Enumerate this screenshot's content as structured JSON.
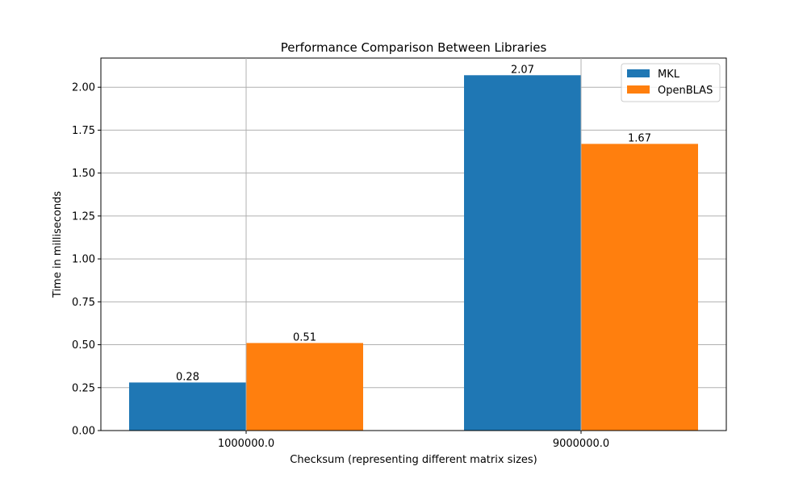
{
  "chart_data": {
    "type": "bar",
    "title": "Performance Comparison Between Libraries",
    "xlabel": "Checksum (representing different matrix sizes)",
    "ylabel": "Time in milliseconds",
    "categories": [
      "1000000.0",
      "9000000.0"
    ],
    "series": [
      {
        "name": "MKL",
        "values": [
          0.28,
          2.07
        ],
        "labels": [
          "0.28",
          "2.07"
        ],
        "color": "#1f77b4"
      },
      {
        "name": "OpenBLAS",
        "values": [
          0.51,
          1.67
        ],
        "labels": [
          "0.51",
          "1.67"
        ],
        "color": "#ff7f0e"
      }
    ],
    "ylim": [
      0,
      2.17
    ],
    "yticks": [
      0.0,
      0.25,
      0.5,
      0.75,
      1.0,
      1.25,
      1.5,
      1.75,
      2.0
    ],
    "ytick_labels": [
      "0.00",
      "0.25",
      "0.50",
      "0.75",
      "1.00",
      "1.25",
      "1.50",
      "1.75",
      "2.00"
    ],
    "grid": true,
    "legend_position": "top-right"
  }
}
